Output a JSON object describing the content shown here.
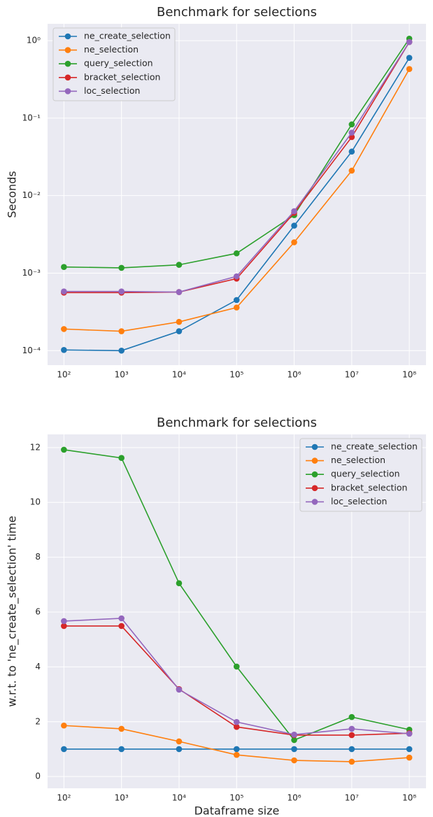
{
  "chart_data": [
    {
      "type": "line",
      "title": "Benchmark for selections",
      "ylabel": "Seconds",
      "log_x": true,
      "log_y": true,
      "grid": true,
      "legend": "upper left",
      "x": [
        100,
        1000,
        10000,
        100000,
        1000000,
        10000000,
        100000000
      ],
      "xlim": [
        52,
        195000000
      ],
      "xticks": [
        {
          "value": 100,
          "label": "10²"
        },
        {
          "value": 1000,
          "label": "10³"
        },
        {
          "value": 10000,
          "label": "10⁴"
        },
        {
          "value": 100000,
          "label": "10⁵"
        },
        {
          "value": 1000000,
          "label": "10⁶"
        },
        {
          "value": 10000000,
          "label": "10⁷"
        },
        {
          "value": 100000000,
          "label": "10⁸"
        }
      ],
      "ylim": [
        6.5e-05,
        1.65
      ],
      "yticks": [
        {
          "value": 0.0001,
          "label": "10⁻⁴"
        },
        {
          "value": 0.001,
          "label": "10⁻³"
        },
        {
          "value": 0.01,
          "label": "10⁻²"
        },
        {
          "value": 0.1,
          "label": "10⁻¹"
        },
        {
          "value": 1,
          "label": "10⁰"
        }
      ],
      "series": [
        {
          "name": "ne_create_selection",
          "color": "#1f77b4",
          "values": [
            0.000102,
            0.0001,
            0.000178,
            0.00045,
            0.0041,
            0.037,
            0.6
          ]
        },
        {
          "name": "ne_selection",
          "color": "#ff7f0e",
          "values": [
            0.00019,
            0.000178,
            0.000235,
            0.00036,
            0.0025,
            0.021,
            0.43
          ]
        },
        {
          "name": "query_selection",
          "color": "#2ca02c",
          "values": [
            0.0012,
            0.00117,
            0.00128,
            0.0018,
            0.0056,
            0.083,
            1.06
          ]
        },
        {
          "name": "bracket_selection",
          "color": "#d62728",
          "values": [
            0.00056,
            0.00056,
            0.00057,
            0.00085,
            0.006,
            0.057,
            0.96
          ]
        },
        {
          "name": "loc_selection",
          "color": "#9467bd",
          "values": [
            0.00058,
            0.00058,
            0.00057,
            0.00091,
            0.0063,
            0.065,
            0.96
          ]
        }
      ]
    },
    {
      "type": "line",
      "title": "Benchmark for selections",
      "ylabel": "w.r.t. to 'ne_create_selection' time",
      "xlabel": "Dataframe size",
      "log_x": true,
      "log_y": false,
      "grid": true,
      "legend": "upper right",
      "x": [
        100,
        1000,
        10000,
        100000,
        1000000,
        10000000,
        100000000
      ],
      "xlim": [
        52,
        195000000
      ],
      "xticks": [
        {
          "value": 100,
          "label": "10²"
        },
        {
          "value": 1000,
          "label": "10³"
        },
        {
          "value": 10000,
          "label": "10⁴"
        },
        {
          "value": 100000,
          "label": "10⁵"
        },
        {
          "value": 1000000,
          "label": "10⁶"
        },
        {
          "value": 10000000,
          "label": "10⁷"
        },
        {
          "value": 100000000,
          "label": "10⁸"
        }
      ],
      "ylim": [
        -0.43,
        12.48
      ],
      "yticks": [
        0,
        2,
        4,
        6,
        8,
        10,
        12
      ],
      "series": [
        {
          "name": "ne_create_selection",
          "color": "#1f77b4",
          "values": [
            1,
            1,
            1,
            1,
            1,
            1,
            1
          ]
        },
        {
          "name": "ne_selection",
          "color": "#ff7f0e",
          "values": [
            1.86,
            1.74,
            1.28,
            0.79,
            0.59,
            0.54,
            0.69
          ]
        },
        {
          "name": "query_selection",
          "color": "#2ca02c",
          "values": [
            11.92,
            11.62,
            7.05,
            4.01,
            1.33,
            2.17,
            1.71
          ]
        },
        {
          "name": "bracket_selection",
          "color": "#d62728",
          "values": [
            5.49,
            5.49,
            3.19,
            1.81,
            1.51,
            1.51,
            1.58
          ]
        },
        {
          "name": "loc_selection",
          "color": "#9467bd",
          "values": [
            5.67,
            5.77,
            3.17,
            1.99,
            1.53,
            1.74,
            1.56
          ]
        }
      ]
    }
  ]
}
